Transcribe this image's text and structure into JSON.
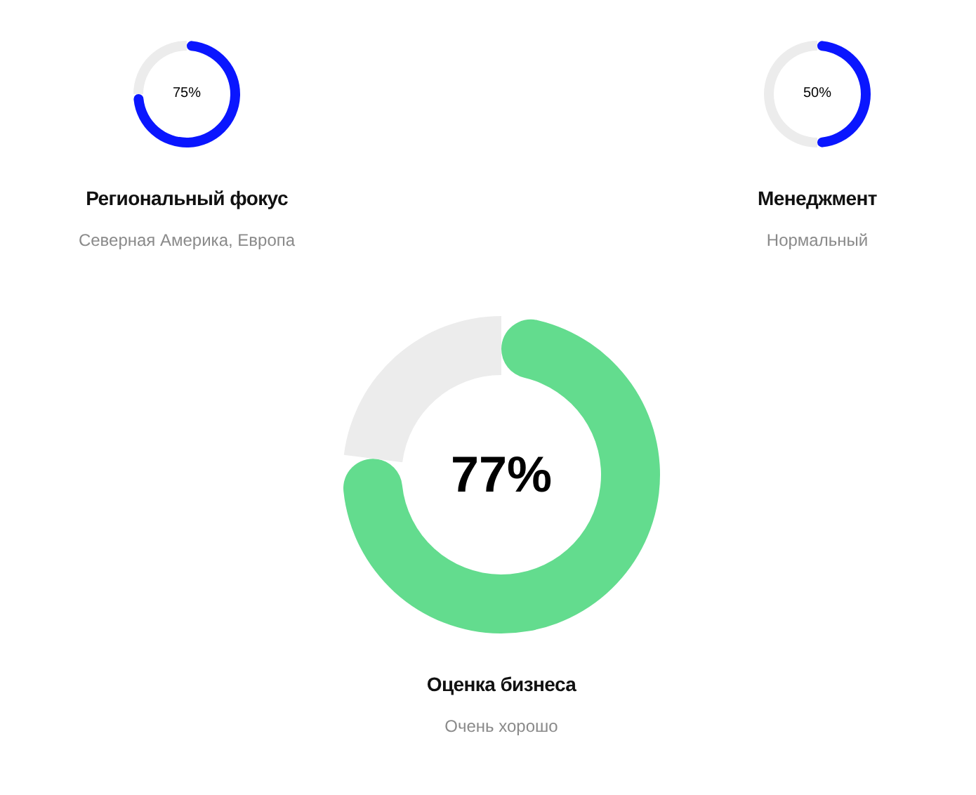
{
  "chart_data": [
    {
      "type": "donut",
      "title": "Региональный фокус",
      "subtitle": "Северная Америка, Европа",
      "categories": [
        null,
        null
      ],
      "values": [
        75,
        25
      ],
      "colors": [
        "#0a16ff",
        "#ececec"
      ],
      "value_labels": [
        "75%",
        null
      ]
    },
    {
      "type": "donut",
      "title": "Менеджмент",
      "subtitle": "Нормальный",
      "categories": [
        null,
        null
      ],
      "values": [
        50,
        50
      ],
      "colors": [
        "#0a16ff",
        "#ececec"
      ],
      "value_labels": [
        "50%",
        null
      ]
    },
    {
      "type": "donut",
      "title": "Оценка бизнеса",
      "subtitle": "Очень хорошо",
      "categories": [
        null,
        null
      ],
      "values": [
        77,
        23
      ],
      "colors": [
        "#63dc8e",
        "#ececec"
      ],
      "value_labels": [
        "77%",
        null
      ]
    }
  ]
}
